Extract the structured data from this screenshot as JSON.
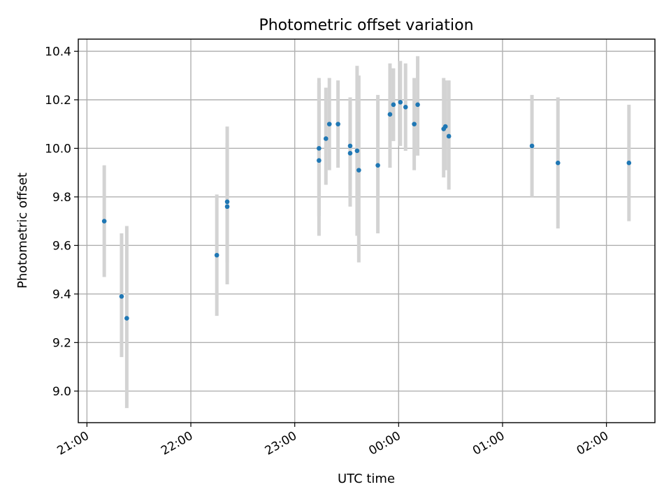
{
  "chart_data": {
    "type": "scatter",
    "title": "Photometric offset variation",
    "xlabel": "UTC time",
    "ylabel": "Photometric offset",
    "x_axis": {
      "unit": "time",
      "reference_date": "",
      "ticks": [
        "21:00",
        "22:00",
        "23:00",
        "00:00",
        "01:00",
        "02:00"
      ],
      "range": [
        "20:55",
        "02:28"
      ],
      "tick_label_rotation": 30
    },
    "y_axis": {
      "ticks": [
        "9.0",
        "9.2",
        "9.4",
        "9.6",
        "9.8",
        "10.0",
        "10.2",
        "10.4"
      ],
      "range": [
        8.87,
        10.45
      ]
    },
    "grid": true,
    "colors": {
      "marker": "#1f77b4",
      "errorbar": "#d3d3d3",
      "grid": "#b0b0b0"
    },
    "series": [
      {
        "points": [
          {
            "x": "21:10",
            "y": 9.7,
            "ylow": 9.47,
            "yhigh": 9.93
          },
          {
            "x": "21:20",
            "y": 9.39,
            "ylow": 9.14,
            "yhigh": 9.65
          },
          {
            "x": "21:23",
            "y": 9.3,
            "ylow": 8.93,
            "yhigh": 9.68
          },
          {
            "x": "22:15",
            "y": 9.56,
            "ylow": 9.31,
            "yhigh": 9.81
          },
          {
            "x": "22:21",
            "y": 9.78,
            "ylow": 9.53,
            "yhigh": 10.02
          },
          {
            "x": "22:21",
            "y": 9.76,
            "ylow": 9.44,
            "yhigh": 10.09
          },
          {
            "x": "23:14",
            "y": 9.95,
            "ylow": 9.64,
            "yhigh": 10.27
          },
          {
            "x": "23:14",
            "y": 10.0,
            "ylow": 9.72,
            "yhigh": 10.29
          },
          {
            "x": "23:18",
            "y": 10.04,
            "ylow": 9.85,
            "yhigh": 10.25
          },
          {
            "x": "23:20",
            "y": 10.1,
            "ylow": 9.91,
            "yhigh": 10.29
          },
          {
            "x": "23:25",
            "y": 10.1,
            "ylow": 9.92,
            "yhigh": 10.28
          },
          {
            "x": "23:32",
            "y": 10.01,
            "ylow": 9.83,
            "yhigh": 10.2
          },
          {
            "x": "23:32",
            "y": 9.98,
            "ylow": 9.76,
            "yhigh": 10.21
          },
          {
            "x": "23:36",
            "y": 9.99,
            "ylow": 9.64,
            "yhigh": 10.34
          },
          {
            "x": "23:37",
            "y": 9.91,
            "ylow": 9.53,
            "yhigh": 10.3
          },
          {
            "x": "23:48",
            "y": 9.93,
            "ylow": 9.65,
            "yhigh": 10.22
          },
          {
            "x": "23:55",
            "y": 10.14,
            "ylow": 9.92,
            "yhigh": 10.35
          },
          {
            "x": "23:57",
            "y": 10.18,
            "ylow": 10.03,
            "yhigh": 10.33
          },
          {
            "x": "00:01",
            "y": 10.19,
            "ylow": 10.01,
            "yhigh": 10.36
          },
          {
            "x": "00:04",
            "y": 10.17,
            "ylow": 9.99,
            "yhigh": 10.35
          },
          {
            "x": "00:09",
            "y": 10.1,
            "ylow": 9.91,
            "yhigh": 10.29
          },
          {
            "x": "00:11",
            "y": 10.18,
            "ylow": 9.97,
            "yhigh": 10.38
          },
          {
            "x": "00:26",
            "y": 10.08,
            "ylow": 9.88,
            "yhigh": 10.29
          },
          {
            "x": "00:27",
            "y": 10.09,
            "ylow": 9.91,
            "yhigh": 10.28
          },
          {
            "x": "00:29",
            "y": 10.05,
            "ylow": 9.83,
            "yhigh": 10.28
          },
          {
            "x": "01:17",
            "y": 10.01,
            "ylow": 9.8,
            "yhigh": 10.22
          },
          {
            "x": "01:32",
            "y": 9.94,
            "ylow": 9.67,
            "yhigh": 10.21
          },
          {
            "x": "02:13",
            "y": 9.94,
            "ylow": 9.7,
            "yhigh": 10.18
          }
        ]
      }
    ]
  }
}
